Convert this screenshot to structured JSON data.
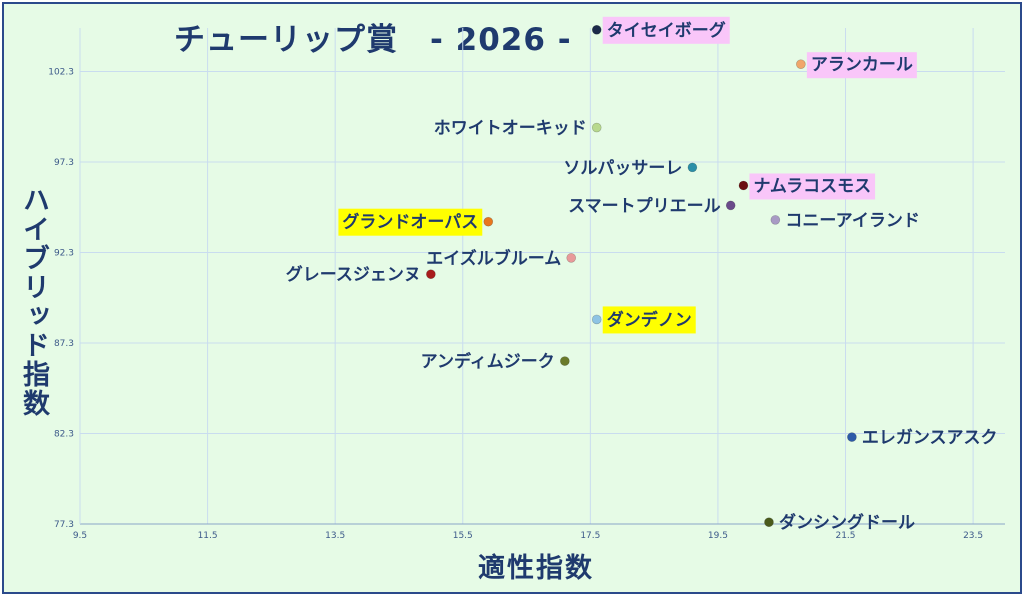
{
  "chart_data": {
    "type": "scatter",
    "title": "チューリップ賞　- 2026 -",
    "xlabel": "適性指数",
    "ylabel": "ハイブリッド指数",
    "xlim": [
      9.5,
      24.0
    ],
    "ylim": [
      77.3,
      104.7
    ],
    "x_ticks": [
      "9.5",
      "11.5",
      "13.5",
      "15.5",
      "17.5",
      "19.5",
      "21.5",
      "23.5"
    ],
    "y_ticks": [
      "77.3",
      "82.3",
      "87.3",
      "92.3",
      "97.3",
      "102.3"
    ],
    "grid": true,
    "points": [
      {
        "name": "タイセイボーグ",
        "x": 17.6,
        "y": 104.6,
        "color": "#1c2a4a",
        "highlight": "#f9c6f9",
        "label_side": "right"
      },
      {
        "name": "アランカール",
        "x": 20.8,
        "y": 102.7,
        "color": "#f0a66a",
        "highlight": "#f9c6f9",
        "label_side": "right"
      },
      {
        "name": "ホワイトオーキッド",
        "x": 17.6,
        "y": 99.2,
        "color": "#b8d98e",
        "highlight": "",
        "label_side": "left"
      },
      {
        "name": "ソルパッサーレ",
        "x": 19.1,
        "y": 97.0,
        "color": "#2b8fa8",
        "highlight": "",
        "label_side": "left"
      },
      {
        "name": "ナムラコスモス",
        "x": 19.9,
        "y": 96.0,
        "color": "#6b1010",
        "highlight": "#f9c6f9",
        "label_side": "right"
      },
      {
        "name": "スマートプリエール",
        "x": 19.7,
        "y": 94.9,
        "color": "#6a4a8a",
        "highlight": "",
        "label_side": "left"
      },
      {
        "name": "コニーアイランド",
        "x": 20.4,
        "y": 94.1,
        "color": "#a89ac4",
        "highlight": "",
        "label_side": "right"
      },
      {
        "name": "グランドオーパス",
        "x": 15.9,
        "y": 94.0,
        "color": "#e8761e",
        "highlight": "#ffff00",
        "label_side": "left"
      },
      {
        "name": "エイズルブルーム",
        "x": 17.2,
        "y": 92.0,
        "color": "#e89a9a",
        "highlight": "",
        "label_side": "left"
      },
      {
        "name": "グレースジェンヌ",
        "x": 15.0,
        "y": 91.1,
        "color": "#a81c1c",
        "highlight": "",
        "label_side": "left"
      },
      {
        "name": "ダンデノン",
        "x": 17.6,
        "y": 88.6,
        "color": "#8ec4e4",
        "highlight": "#ffff00",
        "label_side": "right"
      },
      {
        "name": "アンディムジーク",
        "x": 17.1,
        "y": 86.3,
        "color": "#6a7a2a",
        "highlight": "",
        "label_side": "left"
      },
      {
        "name": "エレガンスアスク",
        "x": 21.6,
        "y": 82.1,
        "color": "#2d5aa8",
        "highlight": "",
        "label_side": "right"
      },
      {
        "name": "ダンシングドール",
        "x": 20.3,
        "y": 77.4,
        "color": "#4a5a1c",
        "highlight": "",
        "label_side": "right"
      }
    ]
  }
}
